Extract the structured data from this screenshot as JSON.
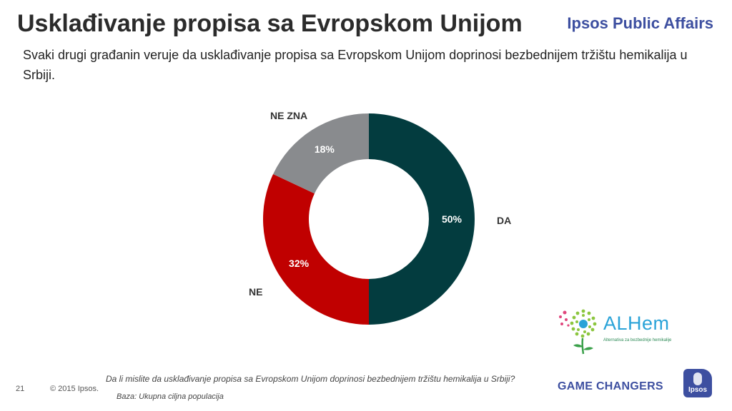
{
  "header": {
    "title": "Usklađivanje propisa sa Evropskom Unijom",
    "brand": "Ipsos Public Affairs",
    "subtitle": "Svaki drugi građanin veruje da usklađivanje propisa sa Evropskom Unijom doprinosi bezbednijem tržištu hemikalija u Srbiji."
  },
  "chart_data": {
    "type": "pie",
    "style": "donut",
    "title": "",
    "slices": [
      {
        "label": "DA",
        "value": 50,
        "value_label": "50%",
        "color": "#033c3f"
      },
      {
        "label": "NE",
        "value": 32,
        "value_label": "32%",
        "color": "#c00000"
      },
      {
        "label": "NE ZNA",
        "value": 18,
        "value_label": "18%",
        "color": "#898b8e"
      }
    ],
    "start": "top",
    "direction": "clockwise",
    "legend": "none"
  },
  "logo": {
    "name": "ALHem",
    "tagline": "Alternativa za bezbednije hemikalije"
  },
  "footer": {
    "question": "Da li mislite da usklađivanje propisa sa Evropskom Unijom doprinosi bezbednijem tržištu hemikalija u Srbiji?",
    "base": "Baza: Ukupna ciljna populacija",
    "page_number": "21",
    "copyright": "© 2015 Ipsos.",
    "tagline": "GAME CHANGERS",
    "ipsos_logo_text": "Ipsos"
  },
  "colors": {
    "title": "#2b2b2b",
    "brand": "#3d4fa0",
    "alhem": "#2aa3d8"
  }
}
